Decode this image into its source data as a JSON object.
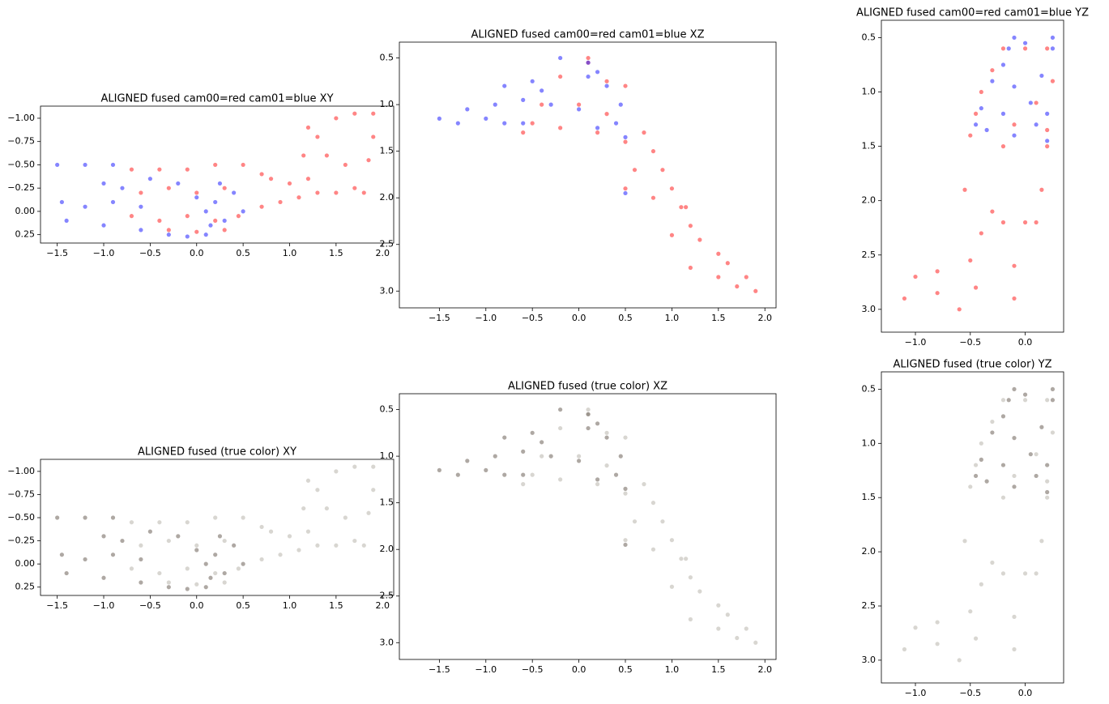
{
  "chart_data": [
    {
      "type": "scatter",
      "title": "ALIGNED fused cam00=red cam01=blue XY",
      "xlim": [
        -1.68,
        2.12
      ],
      "ylim": [
        0.34,
        -1.13
      ],
      "xticks": [
        {
          "value": -1.5,
          "label": "−1.5"
        },
        {
          "value": -1.0,
          "label": "−1.0"
        },
        {
          "value": -0.5,
          "label": "−0.5"
        },
        {
          "value": 0.0,
          "label": "0.0"
        },
        0.5,
        {
          "value": 1.0,
          "label": "1.0"
        },
        1.5,
        {
          "value": 2.0,
          "label": "2.0"
        }
      ],
      "yticks": [
        {
          "value": -1.0,
          "label": "−1.00"
        },
        {
          "value": -0.75,
          "label": "−0.75"
        },
        {
          "value": -0.5,
          "label": "−0.50"
        },
        {
          "value": -0.25,
          "label": "−0.25"
        },
        {
          "value": 0.0,
          "label": "0.00"
        },
        0.25
      ],
      "series": [
        {
          "color": "#ff2020",
          "x": [
            -0.7,
            -0.4,
            -0.1,
            0.2,
            0.5,
            -0.6,
            -0.3,
            0.0,
            0.3,
            -0.7,
            -0.4,
            -0.1,
            0.2,
            0.45,
            -0.3,
            0.0,
            0.3,
            0.7,
            0.9,
            1.1,
            1.3,
            1.5,
            1.7,
            0.8,
            1.0,
            1.2,
            1.15,
            1.3,
            1.5,
            1.7,
            1.9,
            1.4,
            1.6,
            1.85,
            1.9,
            1.2,
            0.7,
            1.8
          ],
          "y": [
            -0.45,
            -0.45,
            -0.45,
            -0.5,
            -0.5,
            -0.2,
            -0.25,
            -0.2,
            -0.25,
            0.05,
            0.1,
            0.05,
            0.1,
            0.05,
            0.2,
            0.22,
            0.2,
            -0.05,
            -0.1,
            -0.15,
            -0.2,
            -0.2,
            -0.25,
            -0.35,
            -0.3,
            -0.35,
            -0.6,
            -0.8,
            -1.0,
            -1.05,
            -1.05,
            -0.6,
            -0.5,
            -0.55,
            -0.8,
            -0.9,
            -0.4,
            -0.2
          ]
        },
        {
          "color": "#2020ff",
          "x": [
            -1.5,
            -1.2,
            -0.9,
            -1.45,
            -1.2,
            -0.9,
            -0.6,
            -1.4,
            -1.0,
            -0.6,
            -0.3,
            -0.1,
            0.1,
            0.1,
            0.2,
            0.3,
            0.4,
            0.25,
            -0.2,
            -0.5,
            0.0,
            0.15,
            -1.0,
            -0.8,
            0.5
          ],
          "y": [
            -0.5,
            -0.5,
            -0.5,
            -0.1,
            -0.05,
            -0.1,
            -0.05,
            0.1,
            0.15,
            0.2,
            0.25,
            0.27,
            0.25,
            0.0,
            -0.1,
            0.1,
            -0.2,
            -0.3,
            -0.3,
            -0.35,
            -0.15,
            0.15,
            -0.3,
            -0.25,
            0.0
          ]
        }
      ]
    },
    {
      "type": "scatter",
      "title": "ALIGNED fused cam00=red cam01=blue XZ",
      "xlim": [
        -1.93,
        2.12
      ],
      "ylim": [
        3.18,
        0.33
      ],
      "xticks": [
        {
          "value": -1.5,
          "label": "−1.5"
        },
        {
          "value": -1.0,
          "label": "−1.0"
        },
        {
          "value": -0.5,
          "label": "−0.5"
        },
        {
          "value": 0.0,
          "label": "0.0"
        },
        0.5,
        {
          "value": 1.0,
          "label": "1.0"
        },
        1.5,
        {
          "value": 2.0,
          "label": "2.0"
        }
      ],
      "yticks": [
        0.5,
        {
          "value": 1.0,
          "label": "1.0"
        },
        1.5,
        {
          "value": 2.0,
          "label": "2.0"
        },
        2.5,
        {
          "value": 3.0,
          "label": "3.0"
        }
      ],
      "series": [
        {
          "color": "#ff2020",
          "x": [
            -0.5,
            -0.2,
            0.3,
            0.5,
            -0.4,
            0.0,
            0.3,
            -0.6,
            -0.2,
            0.2,
            0.5,
            0.1,
            0.1,
            0.7,
            0.8,
            0.9,
            1.0,
            1.1,
            1.2,
            1.3,
            1.5,
            1.6,
            1.8,
            1.9,
            1.5,
            1.2,
            1.0,
            0.8,
            0.6,
            1.15,
            1.7,
            0.5
          ],
          "y": [
            1.2,
            0.7,
            0.75,
            0.8,
            1.0,
            1.0,
            1.1,
            1.3,
            1.25,
            1.3,
            1.4,
            0.55,
            0.5,
            1.3,
            1.5,
            1.7,
            1.9,
            2.1,
            2.3,
            2.45,
            2.6,
            2.7,
            2.85,
            3.0,
            2.85,
            2.75,
            2.4,
            2.0,
            1.7,
            2.1,
            2.95,
            1.9
          ]
        },
        {
          "color": "#2020ff",
          "x": [
            -1.5,
            -1.3,
            -1.0,
            -0.8,
            -1.2,
            -0.9,
            -0.6,
            -0.4,
            -0.2,
            -0.5,
            -0.8,
            0.1,
            0.2,
            0.1,
            0.3,
            0.45,
            0.4,
            0.5,
            0.0,
            -0.3,
            -0.6,
            0.2,
            0.5
          ],
          "y": [
            1.15,
            1.2,
            1.15,
            1.2,
            1.05,
            1.0,
            0.95,
            0.85,
            0.5,
            0.75,
            0.8,
            0.55,
            0.65,
            0.7,
            0.8,
            1.0,
            1.2,
            1.35,
            1.05,
            1.0,
            1.2,
            1.25,
            1.95
          ]
        }
      ]
    },
    {
      "type": "scatter",
      "title": "ALIGNED fused cam00=red cam01=blue YZ",
      "xlim": [
        -1.31,
        0.35
      ],
      "ylim": [
        3.21,
        0.34
      ],
      "xticks": [
        {
          "value": -1.0,
          "label": "−1.0"
        },
        {
          "value": -0.5,
          "label": "−0.5"
        },
        {
          "value": 0.0,
          "label": "0.0"
        }
      ],
      "yticks": [
        0.5,
        {
          "value": 1.0,
          "label": "1.0"
        },
        1.5,
        {
          "value": 2.0,
          "label": "2.0"
        },
        2.5,
        {
          "value": 3.0,
          "label": "3.0"
        }
      ],
      "series": [
        {
          "color": "#ff2020",
          "x": [
            -0.5,
            -0.45,
            -0.4,
            -0.3,
            -0.2,
            0.0,
            0.2,
            0.25,
            0.1,
            -0.1,
            0.2,
            -0.2,
            -0.55,
            -0.3,
            -0.2,
            -0.4,
            -0.5,
            0.0,
            -0.1,
            -1.1,
            -0.8,
            -0.6,
            -1.0,
            -0.8,
            -0.45,
            0.2,
            0.15,
            0.1,
            -0.1
          ],
          "y": [
            1.4,
            1.2,
            1.0,
            0.8,
            0.6,
            0.6,
            0.6,
            0.9,
            1.1,
            1.3,
            1.35,
            1.5,
            1.9,
            2.1,
            2.2,
            2.3,
            2.55,
            2.2,
            2.6,
            2.9,
            2.85,
            3.0,
            2.7,
            2.65,
            2.8,
            1.5,
            1.9,
            2.2,
            2.9
          ]
        },
        {
          "color": "#2020ff",
          "x": [
            -0.1,
            -0.15,
            0.0,
            0.25,
            -0.3,
            -0.1,
            0.15,
            0.25,
            -0.4,
            -0.2,
            0.05,
            0.2,
            -0.35,
            -0.1,
            0.2,
            -0.45,
            -0.2,
            0.1
          ],
          "y": [
            0.5,
            0.6,
            0.55,
            0.6,
            0.9,
            0.95,
            0.85,
            0.5,
            1.15,
            1.2,
            1.1,
            1.2,
            1.35,
            1.4,
            1.45,
            1.3,
            0.75,
            1.3
          ]
        }
      ]
    },
    {
      "type": "scatter",
      "title": "ALIGNED fused (true color) XY",
      "xlim": [
        -1.68,
        2.12
      ],
      "ylim": [
        0.34,
        -1.13
      ],
      "xticks": [
        {
          "value": -1.5,
          "label": "−1.5"
        },
        {
          "value": -1.0,
          "label": "−1.0"
        },
        {
          "value": -0.5,
          "label": "−0.5"
        },
        {
          "value": 0.0,
          "label": "0.0"
        },
        0.5,
        {
          "value": 1.0,
          "label": "1.0"
        },
        1.5,
        {
          "value": 2.0,
          "label": "2.0"
        }
      ],
      "yticks": [
        {
          "value": -1.0,
          "label": "−1.00"
        },
        {
          "value": -0.75,
          "label": "−0.75"
        },
        {
          "value": -0.5,
          "label": "−0.50"
        },
        {
          "value": -0.25,
          "label": "−0.25"
        },
        {
          "value": 0.0,
          "label": "0.00"
        },
        0.25
      ],
      "series": [
        {
          "color": "#b8b4ac",
          "x": [
            -0.7,
            -0.4,
            -0.1,
            0.2,
            0.5,
            -0.6,
            -0.3,
            0.0,
            0.3,
            -0.7,
            -0.4,
            -0.1,
            0.2,
            0.45,
            -0.3,
            0.0,
            0.3,
            0.7,
            0.9,
            1.1,
            1.3,
            1.5,
            1.7,
            0.8,
            1.0,
            1.2,
            1.15,
            1.3,
            1.5,
            1.7,
            1.9,
            1.4,
            1.6,
            1.85,
            1.9,
            1.2,
            0.7,
            1.8
          ],
          "y": [
            -0.45,
            -0.45,
            -0.45,
            -0.5,
            -0.5,
            -0.2,
            -0.25,
            -0.2,
            -0.25,
            0.05,
            0.1,
            0.05,
            0.1,
            0.05,
            0.2,
            0.22,
            0.2,
            -0.05,
            -0.1,
            -0.15,
            -0.2,
            -0.2,
            -0.25,
            -0.35,
            -0.3,
            -0.35,
            -0.6,
            -0.8,
            -1.0,
            -1.05,
            -1.05,
            -0.6,
            -0.5,
            -0.55,
            -0.8,
            -0.9,
            -0.4,
            -0.2
          ]
        },
        {
          "color": "#6b6058",
          "x": [
            -1.5,
            -1.2,
            -0.9,
            -1.45,
            -1.2,
            -0.9,
            -0.6,
            -1.4,
            -1.0,
            -0.6,
            -0.3,
            -0.1,
            0.1,
            0.1,
            0.2,
            0.3,
            0.4,
            0.25,
            -0.2,
            -0.5,
            0.0,
            0.15,
            -1.0,
            -0.8,
            0.5
          ],
          "y": [
            -0.5,
            -0.5,
            -0.5,
            -0.1,
            -0.05,
            -0.1,
            -0.05,
            0.1,
            0.15,
            0.2,
            0.25,
            0.27,
            0.25,
            0.0,
            -0.1,
            0.1,
            -0.2,
            -0.3,
            -0.3,
            -0.35,
            -0.15,
            0.15,
            -0.3,
            -0.25,
            0.0
          ]
        }
      ]
    },
    {
      "type": "scatter",
      "title": "ALIGNED fused (true color) XZ",
      "xlim": [
        -1.93,
        2.12
      ],
      "ylim": [
        3.18,
        0.33
      ],
      "xticks": [
        {
          "value": -1.5,
          "label": "−1.5"
        },
        {
          "value": -1.0,
          "label": "−1.0"
        },
        {
          "value": -0.5,
          "label": "−0.5"
        },
        {
          "value": 0.0,
          "label": "0.0"
        },
        0.5,
        {
          "value": 1.0,
          "label": "1.0"
        },
        1.5,
        {
          "value": 2.0,
          "label": "2.0"
        }
      ],
      "yticks": [
        0.5,
        {
          "value": 1.0,
          "label": "1.0"
        },
        1.5,
        {
          "value": 2.0,
          "label": "2.0"
        },
        2.5,
        {
          "value": 3.0,
          "label": "3.0"
        }
      ],
      "series": [
        {
          "color": "#b8b4ac",
          "x": [
            -0.5,
            -0.2,
            0.3,
            0.5,
            -0.4,
            0.0,
            0.3,
            -0.6,
            -0.2,
            0.2,
            0.5,
            0.1,
            0.1,
            0.7,
            0.8,
            0.9,
            1.0,
            1.1,
            1.2,
            1.3,
            1.5,
            1.6,
            1.8,
            1.9,
            1.5,
            1.2,
            1.0,
            0.8,
            0.6,
            1.15,
            1.7,
            0.5
          ],
          "y": [
            1.2,
            0.7,
            0.75,
            0.8,
            1.0,
            1.0,
            1.1,
            1.3,
            1.25,
            1.3,
            1.4,
            0.55,
            0.5,
            1.3,
            1.5,
            1.7,
            1.9,
            2.1,
            2.3,
            2.45,
            2.6,
            2.7,
            2.85,
            3.0,
            2.85,
            2.75,
            2.4,
            2.0,
            1.7,
            2.1,
            2.95,
            1.9
          ]
        },
        {
          "color": "#6b6058",
          "x": [
            -1.5,
            -1.3,
            -1.0,
            -0.8,
            -1.2,
            -0.9,
            -0.6,
            -0.4,
            -0.2,
            -0.5,
            -0.8,
            0.1,
            0.2,
            0.1,
            0.3,
            0.45,
            0.4,
            0.5,
            0.0,
            -0.3,
            -0.6,
            0.2,
            0.5
          ],
          "y": [
            1.15,
            1.2,
            1.15,
            1.2,
            1.05,
            1.0,
            0.95,
            0.85,
            0.5,
            0.75,
            0.8,
            0.55,
            0.65,
            0.7,
            0.8,
            1.0,
            1.2,
            1.35,
            1.05,
            1.0,
            1.2,
            1.25,
            1.95
          ]
        }
      ]
    },
    {
      "type": "scatter",
      "title": "ALIGNED fused (true color) YZ",
      "xlim": [
        -1.31,
        0.35
      ],
      "ylim": [
        3.21,
        0.34
      ],
      "xticks": [
        {
          "value": -1.0,
          "label": "−1.0"
        },
        {
          "value": -0.5,
          "label": "−0.5"
        },
        {
          "value": 0.0,
          "label": "0.0"
        }
      ],
      "yticks": [
        0.5,
        {
          "value": 1.0,
          "label": "1.0"
        },
        1.5,
        {
          "value": 2.0,
          "label": "2.0"
        },
        2.5,
        {
          "value": 3.0,
          "label": "3.0"
        }
      ],
      "series": [
        {
          "color": "#b8b4ac",
          "x": [
            -0.5,
            -0.45,
            -0.4,
            -0.3,
            -0.2,
            0.0,
            0.2,
            0.25,
            0.1,
            -0.1,
            0.2,
            -0.2,
            -0.55,
            -0.3,
            -0.2,
            -0.4,
            -0.5,
            0.0,
            -0.1,
            -1.1,
            -0.8,
            -0.6,
            -1.0,
            -0.8,
            -0.45,
            0.2,
            0.15,
            0.1,
            -0.1
          ],
          "y": [
            1.4,
            1.2,
            1.0,
            0.8,
            0.6,
            0.6,
            0.6,
            0.9,
            1.1,
            1.3,
            1.35,
            1.5,
            1.9,
            2.1,
            2.2,
            2.3,
            2.55,
            2.2,
            2.6,
            2.9,
            2.85,
            3.0,
            2.7,
            2.65,
            2.8,
            1.5,
            1.9,
            2.2,
            2.9
          ]
        },
        {
          "color": "#6b6058",
          "x": [
            -0.1,
            -0.15,
            0.0,
            0.25,
            -0.3,
            -0.1,
            0.15,
            0.25,
            -0.4,
            -0.2,
            0.05,
            0.2,
            -0.35,
            -0.1,
            0.2,
            -0.45,
            -0.2,
            0.1
          ],
          "y": [
            0.5,
            0.6,
            0.55,
            0.6,
            0.9,
            0.95,
            0.85,
            0.5,
            1.15,
            1.2,
            1.1,
            1.2,
            1.35,
            1.4,
            1.45,
            1.3,
            0.75,
            1.3
          ]
        }
      ]
    }
  ]
}
